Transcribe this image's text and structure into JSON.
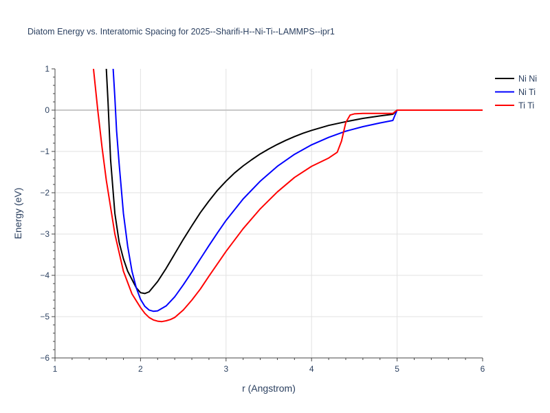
{
  "chart_data": {
    "type": "line",
    "title": "Diatom Energy vs. Interatomic Spacing for 2025--Sharifi-H--Ni-Ti--LAMMPS--ipr1",
    "xlabel": "r (Angstrom)",
    "ylabel": "Energy (eV)",
    "xlim": [
      1,
      6
    ],
    "ylim": [
      -6,
      1
    ],
    "xticks": [
      1,
      2,
      3,
      4,
      5,
      6
    ],
    "yticks": [
      1,
      0,
      -1,
      -2,
      -3,
      -4,
      -5,
      -6
    ],
    "grid": true,
    "legend_position": "top-right",
    "series": [
      {
        "name": "Ni Ni",
        "color": "#000000",
        "x": [
          1.6,
          1.62,
          1.65,
          1.7,
          1.75,
          1.8,
          1.85,
          1.9,
          1.95,
          2.0,
          2.05,
          2.1,
          2.2,
          2.3,
          2.4,
          2.5,
          2.6,
          2.7,
          2.8,
          2.9,
          3.0,
          3.1,
          3.2,
          3.3,
          3.4,
          3.5,
          3.6,
          3.7,
          3.8,
          3.9,
          4.0,
          4.2,
          4.4,
          4.6,
          4.8,
          4.95,
          5.0,
          5.5,
          6.0
        ],
        "y": [
          1.0,
          0.2,
          -1.2,
          -2.5,
          -3.2,
          -3.6,
          -3.9,
          -4.1,
          -4.3,
          -4.42,
          -4.44,
          -4.4,
          -4.15,
          -3.83,
          -3.48,
          -3.13,
          -2.8,
          -2.48,
          -2.2,
          -1.94,
          -1.72,
          -1.52,
          -1.35,
          -1.2,
          -1.06,
          -0.94,
          -0.83,
          -0.73,
          -0.64,
          -0.56,
          -0.49,
          -0.37,
          -0.28,
          -0.2,
          -0.14,
          -0.1,
          0.0,
          0.0,
          0.0
        ]
      },
      {
        "name": "Ni Ti",
        "color": "#0000ff",
        "x": [
          1.68,
          1.7,
          1.72,
          1.75,
          1.8,
          1.85,
          1.9,
          1.95,
          2.0,
          2.05,
          2.1,
          2.15,
          2.2,
          2.3,
          2.4,
          2.5,
          2.6,
          2.7,
          2.8,
          2.9,
          3.0,
          3.2,
          3.4,
          3.6,
          3.8,
          4.0,
          4.2,
          4.4,
          4.6,
          4.8,
          4.95,
          5.0,
          5.5,
          6.0
        ],
        "y": [
          1.0,
          0.3,
          -0.5,
          -1.3,
          -2.5,
          -3.3,
          -3.9,
          -4.3,
          -4.58,
          -4.75,
          -4.84,
          -4.87,
          -4.86,
          -4.74,
          -4.52,
          -4.23,
          -3.92,
          -3.6,
          -3.28,
          -2.97,
          -2.67,
          -2.15,
          -1.72,
          -1.36,
          -1.07,
          -0.84,
          -0.66,
          -0.51,
          -0.4,
          -0.31,
          -0.25,
          0.0,
          0.0,
          0.0
        ]
      },
      {
        "name": "Ti Ti",
        "color": "#ff0000",
        "x": [
          1.45,
          1.5,
          1.55,
          1.6,
          1.7,
          1.8,
          1.9,
          2.0,
          2.05,
          2.1,
          2.15,
          2.2,
          2.25,
          2.3,
          2.35,
          2.4,
          2.5,
          2.6,
          2.7,
          2.8,
          2.9,
          3.0,
          3.2,
          3.4,
          3.6,
          3.8,
          4.0,
          4.2,
          4.3,
          4.35,
          4.4,
          4.45,
          4.5,
          4.6,
          4.8,
          4.95,
          5.0,
          5.5,
          6.0
        ],
        "y": [
          1.0,
          0.0,
          -0.9,
          -1.7,
          -3.0,
          -3.9,
          -4.45,
          -4.78,
          -4.92,
          -5.02,
          -5.08,
          -5.11,
          -5.12,
          -5.1,
          -5.07,
          -5.02,
          -4.84,
          -4.6,
          -4.33,
          -4.02,
          -3.72,
          -3.42,
          -2.87,
          -2.39,
          -1.98,
          -1.63,
          -1.36,
          -1.16,
          -1.02,
          -0.75,
          -0.3,
          -0.12,
          -0.09,
          -0.08,
          -0.08,
          -0.08,
          0.0,
          0.0,
          0.0
        ]
      }
    ]
  }
}
